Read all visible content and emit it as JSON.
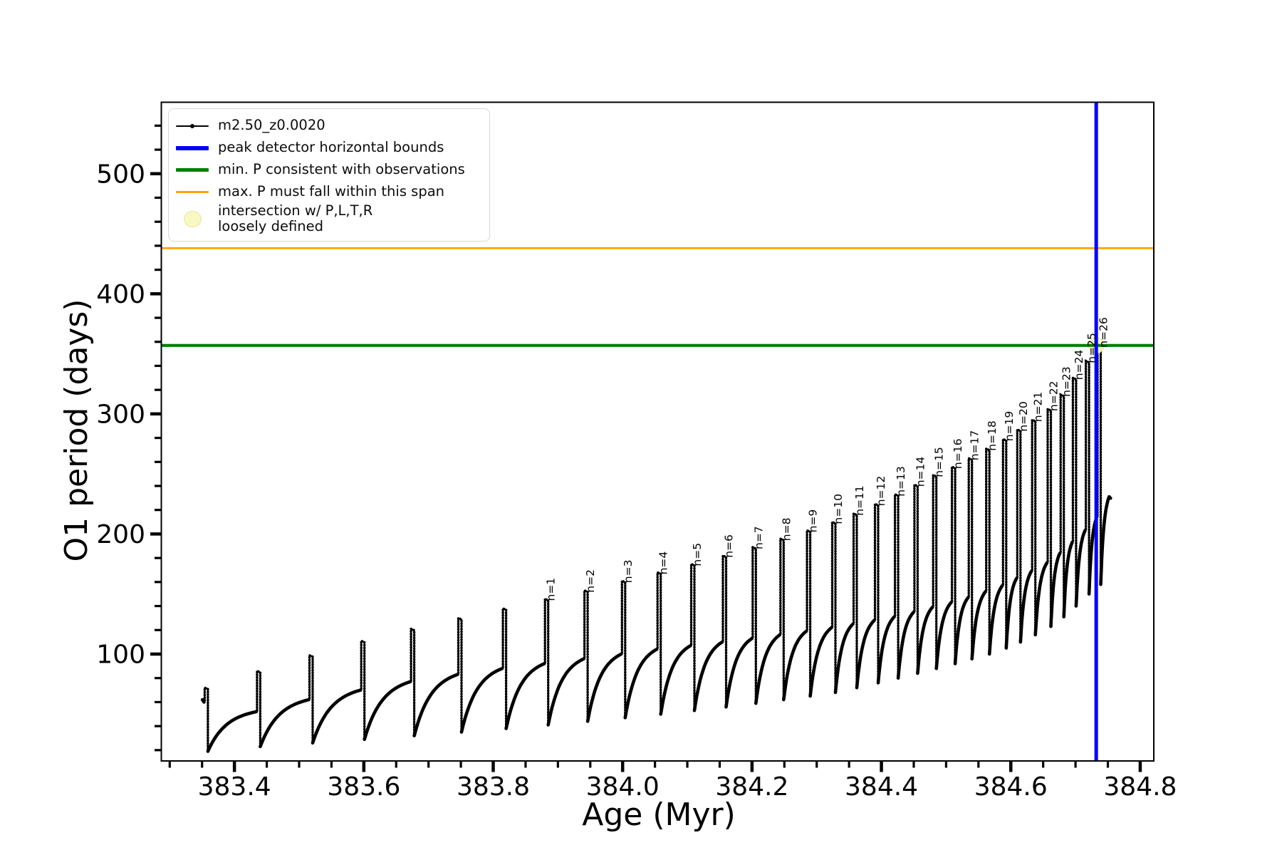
{
  "chart_data": {
    "type": "line",
    "title": "",
    "xlabel": "Age (Myr)",
    "ylabel": "O1 period (days)",
    "xlim": [
      383.287,
      384.821
    ],
    "ylim": [
      11,
      559.5
    ],
    "grid": false,
    "xticks": {
      "major": [
        383.4,
        383.6,
        383.8,
        384.0,
        384.2,
        384.4,
        384.6,
        384.8
      ],
      "labels": [
        "383.4",
        "383.6",
        "383.8",
        "384.0",
        "384.2",
        "384.4",
        "384.6",
        "384.8"
      ],
      "minor_step": 0.05,
      "minor_start": 383.3
    },
    "yticks": {
      "major": [
        100,
        200,
        300,
        400,
        500
      ],
      "labels": [
        "100",
        "200",
        "300",
        "400",
        "500"
      ],
      "minor_step": 20,
      "minor_start": 20,
      "minor_end": 540
    },
    "series_label": "m2.50_z0.0020",
    "series_color": "#000000",
    "spikes": {
      "comment_ages_are_x_of_each_period_spike": true,
      "ages": [
        383.354,
        383.435,
        383.516,
        383.596,
        383.673,
        383.746,
        383.815,
        383.88,
        383.941,
        383.999,
        384.054,
        384.106,
        384.155,
        384.201,
        384.244,
        384.285,
        384.324,
        384.357,
        384.39,
        384.421,
        384.451,
        384.48,
        384.509,
        384.535,
        384.562,
        384.588,
        384.61,
        384.633,
        384.657,
        384.677,
        384.696,
        384.716,
        384.734
      ],
      "peaks": [
        72,
        86,
        99,
        111,
        121,
        130,
        138,
        146,
        153,
        161,
        168,
        175,
        182,
        189,
        196,
        203,
        210,
        217,
        225,
        233,
        241,
        249,
        256,
        263,
        271,
        279,
        287,
        295,
        304,
        316,
        330,
        344,
        357
      ],
      "shoulders": [
        60,
        52,
        62,
        70,
        77,
        83,
        88,
        92,
        96,
        100,
        104,
        107,
        110,
        113,
        116,
        119,
        122,
        125,
        128,
        131,
        135,
        139,
        143,
        147,
        152,
        157,
        163,
        169,
        176,
        184,
        193,
        203,
        214
      ],
      "dips": [
        19,
        23,
        26,
        29,
        32,
        35,
        38,
        41,
        44,
        47,
        50,
        53,
        56,
        59,
        62,
        65,
        68,
        72,
        76,
        80,
        84,
        88,
        92,
        96,
        100,
        105,
        110,
        116,
        123,
        131,
        140,
        150,
        158
      ],
      "first_labeled_index": 7,
      "label_prefix": "n=",
      "label_numbers": [
        1,
        2,
        3,
        4,
        5,
        6,
        7,
        8,
        9,
        10,
        11,
        12,
        13,
        14,
        15,
        16,
        17,
        18,
        19,
        20,
        21,
        22,
        23,
        24,
        25,
        26
      ]
    },
    "lead_in": {
      "age": 383.3505,
      "value": 62
    },
    "end_point": {
      "age": 384.752,
      "value": 231
    },
    "hlines": [
      {
        "name": "max-P-span-line",
        "y": 438,
        "color": "#ffa500",
        "lw": 2.8,
        "label": "max. P must fall within this span"
      },
      {
        "name": "min-P-obs-line",
        "y": 357,
        "color": "#008000",
        "lw": 4.2,
        "label": "min. P consistent with observations"
      }
    ],
    "vline": {
      "name": "peak-detector-bound-line",
      "x": 384.732,
      "color": "#0000ff",
      "lw": 5,
      "label": "peak detector horizontal bounds"
    },
    "intersection_marker": {
      "x": 384.732,
      "y": 357,
      "radius": 11,
      "color": "#f9f8c5",
      "label": "intersection w/ P,L,T,R loosely defined"
    },
    "legend": {
      "items": [
        {
          "swatch": "line-dot",
          "color": "#000000",
          "lw": 2,
          "label": "m2.50_z0.0020"
        },
        {
          "swatch": "line",
          "color": "#0000ff",
          "lw": 6,
          "label": "peak detector horizontal bounds"
        },
        {
          "swatch": "line",
          "color": "#008000",
          "lw": 5,
          "label": "min. P consistent with observations"
        },
        {
          "swatch": "line",
          "color": "#ffa500",
          "lw": 3,
          "label": "max. P must fall within this span"
        },
        {
          "swatch": "marker",
          "color": "#f9f8c5",
          "lw": 0,
          "label": "intersection w/ P,L,T,R\nloosely defined"
        }
      ]
    }
  }
}
